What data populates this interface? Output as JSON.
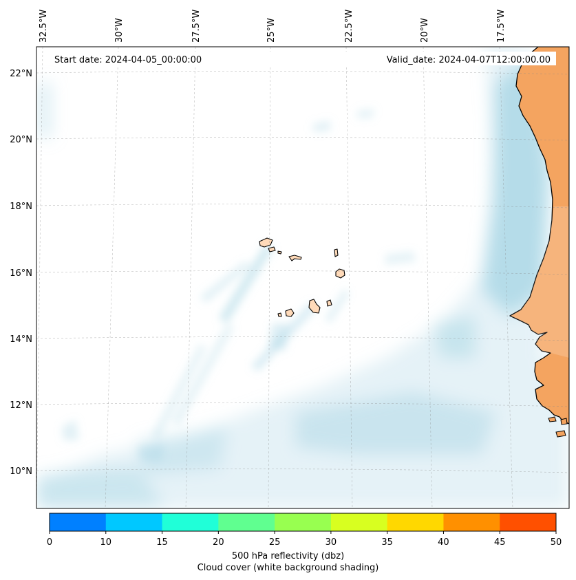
{
  "map": {
    "start_date": "Start date: 2024-04-05_00:00:00",
    "valid_date": "Valid_date: 2024-04-07T12:00:00.00",
    "lon_labels": [
      "32.5°W",
      "30°W",
      "27.5°W",
      "25°W",
      "22.5°W",
      "20°W",
      "17.5°W"
    ],
    "lat_labels": [
      "22°N",
      "20°N",
      "18°N",
      "16°N",
      "14°N",
      "12°N",
      "10°N"
    ],
    "land_color": "#f4a460",
    "island_color": "#ffdab9",
    "cloud_color": "#add8e6"
  },
  "colorbar": {
    "ticks": [
      "0",
      "10",
      "15",
      "20",
      "25",
      "30",
      "35",
      "40",
      "45",
      "50"
    ],
    "colors": [
      "#0080ff",
      "#00c8ff",
      "#20ffd8",
      "#60ff90",
      "#98ff50",
      "#d8ff20",
      "#ffd800",
      "#ff9000",
      "#ff5000"
    ],
    "label": "500 hPa reflectivity (dbz)",
    "sublabel": "Cloud cover (white background shading)"
  }
}
